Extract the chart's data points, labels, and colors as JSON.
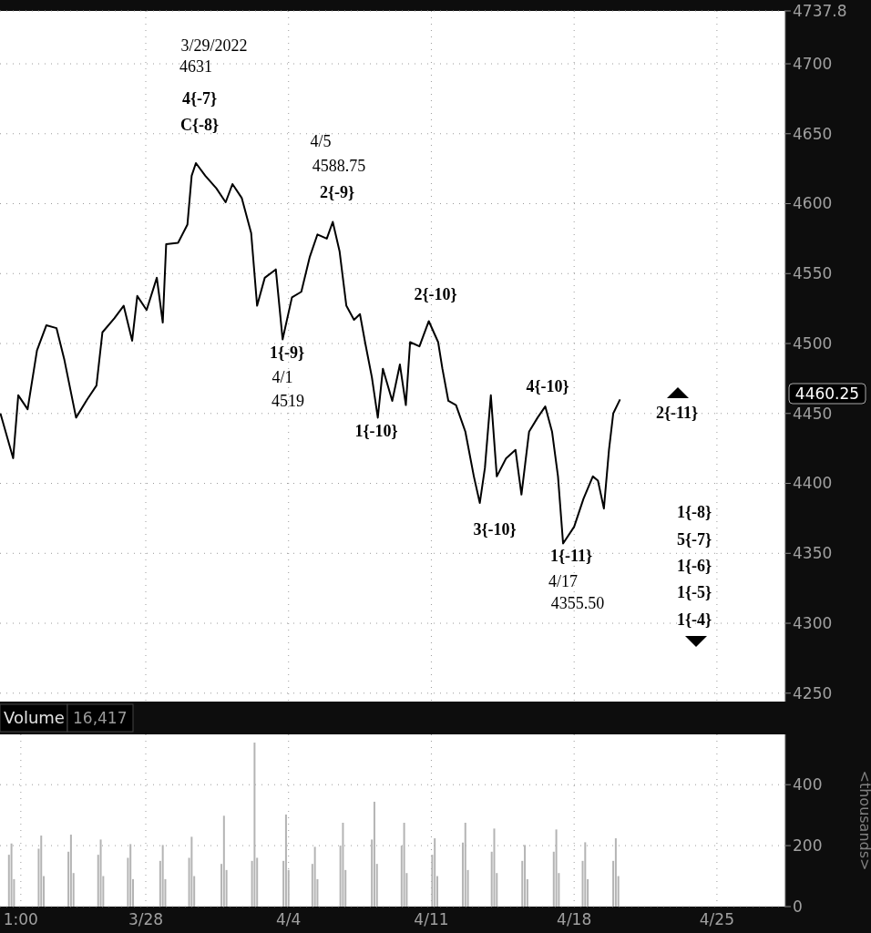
{
  "chart_data": [
    {
      "type": "line",
      "color": "#000000",
      "grid": true,
      "tick_labels": "y",
      "xlim": [
        "2022-03-20T20:30",
        "2022-04-28T08:30"
      ],
      "xticks": [
        {
          "value": "2022-03-28T00:00",
          "label": null
        },
        {
          "value": "2022-04-04T00:00",
          "label": null
        },
        {
          "value": "2022-04-11T00:00",
          "label": null
        },
        {
          "value": "2022-04-18T00:00",
          "label": null
        },
        {
          "value": "2022-04-25T00:00",
          "label": null
        }
      ],
      "ylim": [
        4244,
        4737.8
      ],
      "yticks": [
        4250,
        4300,
        4350,
        4400,
        4450,
        4500,
        4550,
        4600,
        4650,
        4700,
        4737.8
      ],
      "x": [
        "2022-03-20T21:00",
        "2022-03-21T12:00",
        "2022-03-21T18:00",
        "2022-03-22T05:00",
        "2022-03-22T16:00",
        "2022-03-23T03:00",
        "2022-03-23T15:00",
        "2022-03-24T00:00",
        "2022-03-24T14:00",
        "2022-03-25T03:00",
        "2022-03-25T14:00",
        "2022-03-25T21:00",
        "2022-03-26T11:00",
        "2022-03-26T22:00",
        "2022-03-27T08:00",
        "2022-03-27T14:00",
        "2022-03-28T01:00",
        "2022-03-28T13:00",
        "2022-03-28T20:00",
        "2022-03-29T00:00",
        "2022-03-29T14:00",
        "2022-03-30T01:00",
        "2022-03-30T06:00",
        "2022-03-30T11:00",
        "2022-03-30T22:00",
        "2022-03-31T11:00",
        "2022-03-31T22:00",
        "2022-04-01T06:00",
        "2022-04-01T17:00",
        "2022-04-02T04:00",
        "2022-04-02T11:00",
        "2022-04-02T20:00",
        "2022-04-03T09:00",
        "2022-04-03T17:00",
        "2022-04-04T04:00",
        "2022-04-04T15:00",
        "2022-04-05T01:00",
        "2022-04-05T10:00",
        "2022-04-05T21:00",
        "2022-04-06T04:00",
        "2022-04-06T12:00",
        "2022-04-06T20:00",
        "2022-04-07T05:00",
        "2022-04-07T12:00",
        "2022-04-07T18:00",
        "2022-04-08T02:00",
        "2022-04-08T09:00",
        "2022-04-08T15:00",
        "2022-04-09T02:00",
        "2022-04-09T11:00",
        "2022-04-09T18:00",
        "2022-04-09T23:00",
        "2022-04-10T10:00",
        "2022-04-10T21:00",
        "2022-04-11T08:00",
        "2022-04-11T13:00",
        "2022-04-11T20:00",
        "2022-04-12T05:00",
        "2022-04-12T16:00",
        "2022-04-13T02:00",
        "2022-04-13T09:00",
        "2022-04-13T15:00",
        "2022-04-13T22:00",
        "2022-04-14T05:00",
        "2022-04-14T16:00",
        "2022-04-15T03:00",
        "2022-04-15T10:00",
        "2022-04-15T19:00",
        "2022-04-16T05:00",
        "2022-04-16T14:00",
        "2022-04-16T22:00",
        "2022-04-17T05:00",
        "2022-04-17T11:00",
        "2022-04-18T00:00",
        "2022-04-18T11:00",
        "2022-04-18T22:00",
        "2022-04-19T04:00",
        "2022-04-19T11:00",
        "2022-04-19T17:00",
        "2022-04-19T22:00",
        "2022-04-20T06:00"
      ],
      "values": [
        4450,
        4418,
        4463,
        4453,
        4495,
        4513,
        4511,
        4489,
        4447,
        4460,
        4470,
        4508,
        4518,
        4527,
        4502,
        4534,
        4524,
        4547,
        4515,
        4571,
        4572,
        4585,
        4620,
        4629,
        4620,
        4611,
        4601,
        4614,
        4604,
        4579,
        4527,
        4547,
        4553,
        4503,
        4533,
        4537,
        4562,
        4578,
        4575,
        4587,
        4566,
        4527,
        4517,
        4521,
        4501,
        4476,
        4447,
        4482,
        4459,
        4485,
        4456,
        4501,
        4498,
        4516,
        4501,
        4482,
        4459,
        4456,
        4437,
        4405,
        4386,
        4411,
        4463,
        4405,
        4418,
        4424,
        4392,
        4437,
        4447,
        4455,
        4437,
        4405,
        4357,
        4369,
        4389,
        4405,
        4402,
        4382,
        4424,
        4450,
        4460
      ],
      "annotations": [
        "3/29/2022",
        "4631",
        "4{-7}",
        "C{-8}",
        "4/5",
        "4588.75",
        "2{-9}",
        "1{-9}",
        "4/1",
        "4519",
        "2{-10}",
        "1{-10}",
        "3{-10}",
        "4{-10}",
        "1{-11}",
        "4/17",
        "4355.50",
        "2{-11}",
        "1{-8}",
        "5{-7}",
        "1{-6}",
        "1{-5}",
        "1{-4}",
        "4460.25"
      ]
    },
    {
      "type": "bar",
      "title": "Volume",
      "annotations": [
        "16,417"
      ],
      "ylabel": "<thousands>",
      "color": "#b4b4b4",
      "grid": true,
      "xlim": [
        "2022-03-20T20:30",
        "2022-04-28T08:30"
      ],
      "xticks": [
        {
          "value": "2022-03-21T21:00",
          "label": "1:00"
        },
        {
          "value": "2022-03-28T00:00",
          "label": "3/28"
        },
        {
          "value": "2022-04-04T00:00",
          "label": "4/4"
        },
        {
          "value": "2022-04-11T00:00",
          "label": "4/11"
        },
        {
          "value": "2022-04-18T00:00",
          "label": "4/18"
        },
        {
          "value": "2022-04-25T00:00",
          "label": "4/25"
        }
      ],
      "ylim": [
        0,
        565
      ],
      "yticks": [
        0,
        200,
        400
      ],
      "x": [
        "2022-03-21T07:00",
        "2022-03-21T10:00",
        "2022-03-21T13:00",
        "2022-03-22T18:00",
        "2022-03-22T21:00",
        "2022-03-23T00:00",
        "2022-03-24T05:00",
        "2022-03-24T08:00",
        "2022-03-24T11:00",
        "2022-03-25T16:00",
        "2022-03-25T19:00",
        "2022-03-25T22:00",
        "2022-03-27T03:00",
        "2022-03-27T06:00",
        "2022-03-27T09:00",
        "2022-03-28T17:00",
        "2022-03-28T20:00",
        "2022-03-28T23:00",
        "2022-03-30T03:00",
        "2022-03-30T06:00",
        "2022-03-30T09:00",
        "2022-03-31T17:00",
        "2022-03-31T20:00",
        "2022-03-31T23:00",
        "2022-04-02T05:00",
        "2022-04-02T08:00",
        "2022-04-02T11:00",
        "2022-04-03T18:00",
        "2022-04-03T21:00",
        "2022-04-04T00:00",
        "2022-04-05T04:00",
        "2022-04-05T07:00",
        "2022-04-05T10:00",
        "2022-04-06T13:00",
        "2022-04-06T16:00",
        "2022-04-06T19:00",
        "2022-04-08T02:00",
        "2022-04-08T05:00",
        "2022-04-08T08:00",
        "2022-04-09T13:00",
        "2022-04-09T16:00",
        "2022-04-09T19:00",
        "2022-04-11T01:00",
        "2022-04-11T04:00",
        "2022-04-11T07:00",
        "2022-04-12T13:00",
        "2022-04-12T16:00",
        "2022-04-12T19:00",
        "2022-04-13T23:00",
        "2022-04-14T02:00",
        "2022-04-14T05:00",
        "2022-04-15T11:00",
        "2022-04-15T14:00",
        "2022-04-15T17:00",
        "2022-04-17T00:00",
        "2022-04-17T03:00",
        "2022-04-17T06:00",
        "2022-04-18T10:00",
        "2022-04-18T13:00",
        "2022-04-18T16:00",
        "2022-04-19T22:00",
        "2022-04-20T01:00",
        "2022-04-20T04:00"
      ],
      "values": [
        170,
        207,
        90,
        190,
        233,
        100,
        180,
        236,
        110,
        170,
        220,
        100,
        160,
        205,
        90,
        150,
        202,
        90,
        160,
        229,
        100,
        140,
        298,
        120,
        150,
        538,
        160,
        150,
        302,
        120,
        140,
        196,
        90,
        200,
        275,
        120,
        220,
        344,
        140,
        200,
        275,
        110,
        170,
        224,
        100,
        210,
        275,
        120,
        180,
        256,
        110,
        150,
        202,
        90,
        180,
        253,
        110,
        150,
        211,
        90,
        150,
        224,
        100
      ]
    }
  ]
}
